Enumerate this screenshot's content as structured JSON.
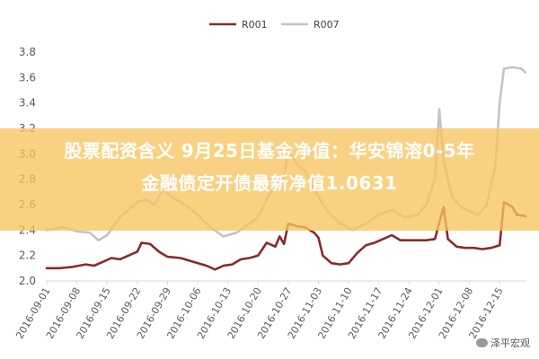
{
  "banner": {
    "line1": "股票配资含义 9月25日基金净值：华安锦溶0-5年",
    "line2": "金融债定开债最新净值1.0631"
  },
  "watermark": "泽平宏观",
  "chart_data": {
    "type": "line",
    "xlabel": "",
    "ylabel": "",
    "ylim": [
      2.0,
      3.8
    ],
    "yticks": [
      "2.0",
      "2.2",
      "2.4",
      "2.6",
      "2.8",
      "3.0",
      "3.2",
      "3.4",
      "3.6",
      "3.8"
    ],
    "xtick_labels": [
      "2016-09-01",
      "2016-09-08",
      "2016-09-15",
      "2016-09-22",
      "2016-09-29",
      "2016-10-06",
      "2016-10-13",
      "2016-10-20",
      "2016-10-27",
      "2016-11-03",
      "2016-11-10",
      "2016-11-17",
      "2016-11-24",
      "2016-12-01",
      "2016-12-08",
      "2016-12-15"
    ],
    "x_start": "2016-09-01",
    "x_end": "2016-12-21",
    "legend_position": "top",
    "grid": false,
    "colors": {
      "R001": "#8b2a2a",
      "R007": "#c3c3c3",
      "axis": "#d9d9d9",
      "tick_text": "#595959"
    },
    "series": [
      {
        "name": "R001",
        "points": [
          [
            "2016-09-01",
            2.1
          ],
          [
            "2016-09-04",
            2.1
          ],
          [
            "2016-09-07",
            2.11
          ],
          [
            "2016-09-10",
            2.13
          ],
          [
            "2016-09-12",
            2.12
          ],
          [
            "2016-09-14",
            2.15
          ],
          [
            "2016-09-16",
            2.18
          ],
          [
            "2016-09-18",
            2.17
          ],
          [
            "2016-09-20",
            2.2
          ],
          [
            "2016-09-22",
            2.23
          ],
          [
            "2016-09-23",
            2.3
          ],
          [
            "2016-09-25",
            2.29
          ],
          [
            "2016-09-27",
            2.23
          ],
          [
            "2016-09-29",
            2.19
          ],
          [
            "2016-10-02",
            2.18
          ],
          [
            "2016-10-05",
            2.15
          ],
          [
            "2016-10-08",
            2.12
          ],
          [
            "2016-10-10",
            2.09
          ],
          [
            "2016-10-12",
            2.12
          ],
          [
            "2016-10-14",
            2.13
          ],
          [
            "2016-10-16",
            2.17
          ],
          [
            "2016-10-18",
            2.18
          ],
          [
            "2016-10-20",
            2.2
          ],
          [
            "2016-10-22",
            2.3
          ],
          [
            "2016-10-24",
            2.27
          ],
          [
            "2016-10-25",
            2.35
          ],
          [
            "2016-10-26",
            2.29
          ],
          [
            "2016-10-27",
            2.45
          ],
          [
            "2016-10-29",
            2.43
          ],
          [
            "2016-10-31",
            2.42
          ],
          [
            "2016-11-02",
            2.38
          ],
          [
            "2016-11-03",
            2.34
          ],
          [
            "2016-11-04",
            2.2
          ],
          [
            "2016-11-06",
            2.14
          ],
          [
            "2016-11-08",
            2.13
          ],
          [
            "2016-11-10",
            2.14
          ],
          [
            "2016-11-12",
            2.22
          ],
          [
            "2016-11-14",
            2.28
          ],
          [
            "2016-11-16",
            2.3
          ],
          [
            "2016-11-18",
            2.33
          ],
          [
            "2016-11-20",
            2.36
          ],
          [
            "2016-11-21",
            2.34
          ],
          [
            "2016-11-22",
            2.32
          ],
          [
            "2016-11-25",
            2.32
          ],
          [
            "2016-11-28",
            2.32
          ],
          [
            "2016-11-30",
            2.33
          ],
          [
            "2016-12-01",
            2.46
          ],
          [
            "2016-12-02",
            2.58
          ],
          [
            "2016-12-03",
            2.33
          ],
          [
            "2016-12-05",
            2.27
          ],
          [
            "2016-12-07",
            2.26
          ],
          [
            "2016-12-09",
            2.26
          ],
          [
            "2016-12-11",
            2.25
          ],
          [
            "2016-12-13",
            2.26
          ],
          [
            "2016-12-15",
            2.28
          ],
          [
            "2016-12-16",
            2.62
          ],
          [
            "2016-12-18",
            2.58
          ],
          [
            "2016-12-19",
            2.52
          ],
          [
            "2016-12-21",
            2.51
          ]
        ]
      },
      {
        "name": "R007",
        "points": [
          [
            "2016-09-01",
            2.4
          ],
          [
            "2016-09-05",
            2.42
          ],
          [
            "2016-09-08",
            2.39
          ],
          [
            "2016-09-11",
            2.38
          ],
          [
            "2016-09-13",
            2.32
          ],
          [
            "2016-09-15",
            2.36
          ],
          [
            "2016-09-18",
            2.5
          ],
          [
            "2016-09-20",
            2.56
          ],
          [
            "2016-09-22",
            2.62
          ],
          [
            "2016-09-24",
            2.64
          ],
          [
            "2016-09-26",
            2.6
          ],
          [
            "2016-09-28",
            2.72
          ],
          [
            "2016-09-30",
            2.66
          ],
          [
            "2016-10-03",
            2.6
          ],
          [
            "2016-10-06",
            2.52
          ],
          [
            "2016-10-09",
            2.42
          ],
          [
            "2016-10-12",
            2.35
          ],
          [
            "2016-10-15",
            2.38
          ],
          [
            "2016-10-18",
            2.45
          ],
          [
            "2016-10-20",
            2.5
          ],
          [
            "2016-10-22",
            2.64
          ],
          [
            "2016-10-24",
            2.76
          ],
          [
            "2016-10-26",
            2.82
          ],
          [
            "2016-10-27",
            3.02
          ],
          [
            "2016-10-29",
            2.92
          ],
          [
            "2016-10-31",
            2.86
          ],
          [
            "2016-11-02",
            2.72
          ],
          [
            "2016-11-05",
            2.55
          ],
          [
            "2016-11-08",
            2.45
          ],
          [
            "2016-11-11",
            2.4
          ],
          [
            "2016-11-14",
            2.45
          ],
          [
            "2016-11-17",
            2.52
          ],
          [
            "2016-11-20",
            2.56
          ],
          [
            "2016-11-23",
            2.5
          ],
          [
            "2016-11-26",
            2.52
          ],
          [
            "2016-11-28",
            2.6
          ],
          [
            "2016-11-30",
            2.8
          ],
          [
            "2016-12-01",
            3.35
          ],
          [
            "2016-12-02",
            2.95
          ],
          [
            "2016-12-04",
            2.66
          ],
          [
            "2016-12-06",
            2.58
          ],
          [
            "2016-12-08",
            2.55
          ],
          [
            "2016-12-10",
            2.52
          ],
          [
            "2016-12-12",
            2.6
          ],
          [
            "2016-12-14",
            2.9
          ],
          [
            "2016-12-15",
            3.4
          ],
          [
            "2016-12-16",
            3.67
          ],
          [
            "2016-12-18",
            3.68
          ],
          [
            "2016-12-20",
            3.67
          ],
          [
            "2016-12-21",
            3.64
          ]
        ]
      }
    ]
  }
}
